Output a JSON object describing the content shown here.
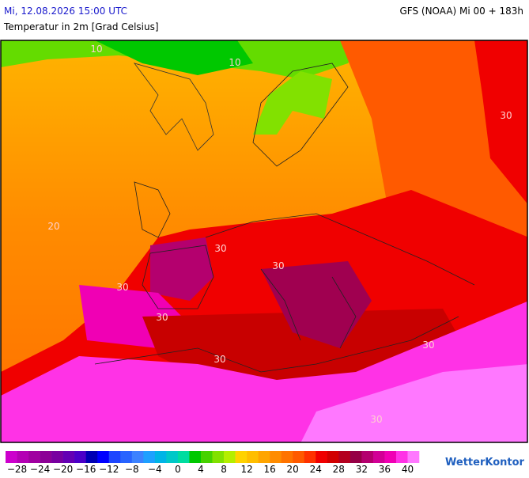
{
  "header": {
    "valid_time": "Mi, 12.08.2026 15:00 UTC",
    "model_run": "GFS (NOAA) Mi 00 + 183h",
    "parameter": "Temperatur in 2m [Grad Celsius]"
  },
  "map": {
    "contour_labels": [
      "10",
      "10",
      "20",
      "30",
      "30",
      "30",
      "30",
      "30",
      "30",
      "30",
      "30"
    ]
  },
  "legend": {
    "range": [
      -30,
      42
    ],
    "colors": [
      "#cc00cc",
      "#b400b4",
      "#a000a0",
      "#8c0096",
      "#7800a0",
      "#6400b4",
      "#4b00c8",
      "#0000b4",
      "#0000ff",
      "#1e46ff",
      "#2864ff",
      "#3c82ff",
      "#1ea0ff",
      "#00b4e6",
      "#00c8c8",
      "#00dca0",
      "#00c800",
      "#46d200",
      "#82e100",
      "#b4ee00",
      "#ffd200",
      "#ffbe00",
      "#ffa500",
      "#ff8c00",
      "#ff7300",
      "#ff5a00",
      "#ff3200",
      "#f00000",
      "#d20000",
      "#b4001e",
      "#960046",
      "#b4006e",
      "#d20096",
      "#f000b4",
      "#ff32e6",
      "#ff78ff"
    ],
    "ticks": [
      {
        "value": -28,
        "label": "−28"
      },
      {
        "value": -24,
        "label": "−24"
      },
      {
        "value": -20,
        "label": "−20"
      },
      {
        "value": -16,
        "label": "−16"
      },
      {
        "value": -12,
        "label": "−12"
      },
      {
        "value": -8,
        "label": "−8"
      },
      {
        "value": -4,
        "label": "−4"
      },
      0,
      4,
      8,
      12,
      16,
      20,
      24,
      28,
      32,
      36,
      40
    ]
  },
  "brand": "WetterKontor"
}
